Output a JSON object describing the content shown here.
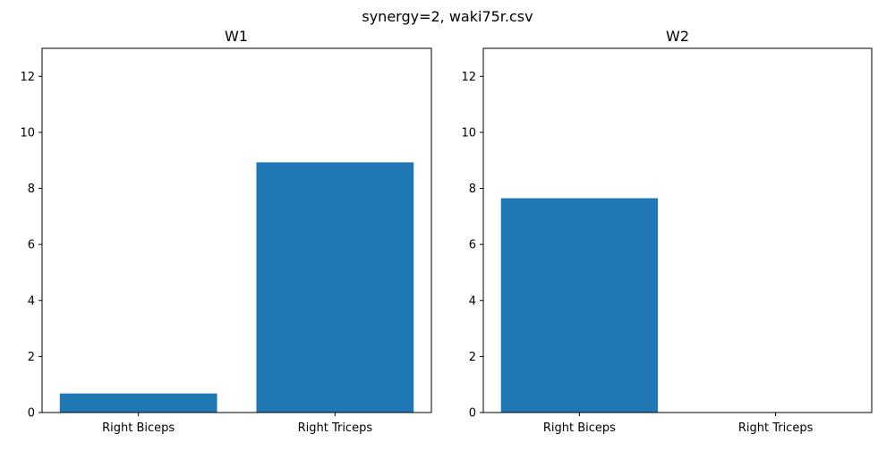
{
  "suptitle": "synergy=2, waki75r.csv",
  "chart_data": [
    {
      "type": "bar",
      "title": "W1",
      "categories": [
        "Right Biceps",
        "Right Triceps"
      ],
      "values": [
        0.68,
        8.93
      ],
      "ylim": [
        0,
        13
      ],
      "yticks": [
        "0",
        "2",
        "4",
        "6",
        "8",
        "10",
        "12"
      ],
      "grid": false,
      "color": "#1f77b4"
    },
    {
      "type": "bar",
      "title": "W2",
      "categories": [
        "Right Biceps",
        "Right Triceps"
      ],
      "values": [
        7.65,
        0
      ],
      "ylim": [
        0,
        13
      ],
      "yticks": [
        "0",
        "2",
        "4",
        "6",
        "8",
        "10",
        "12"
      ],
      "grid": false,
      "color": "#1f77b4"
    }
  ]
}
